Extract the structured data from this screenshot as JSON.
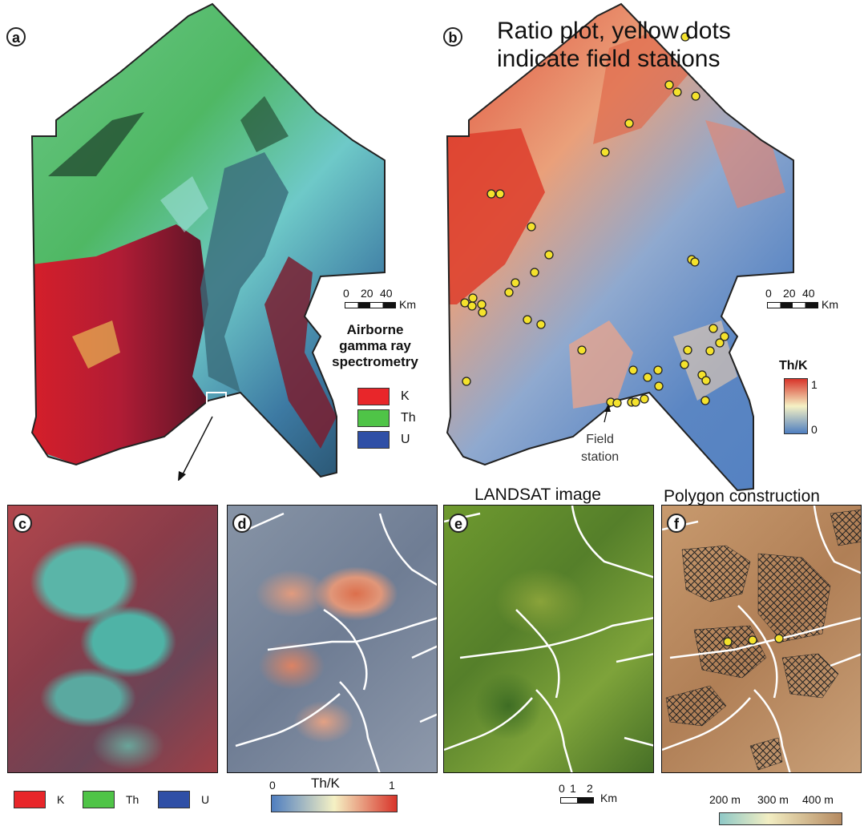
{
  "panels": {
    "a": {
      "letter": "a"
    },
    "b": {
      "letter": "b",
      "title_line1": "Ratio plot, yellow dots",
      "title_line2": "indicate field stations",
      "annotation_line1": "Field",
      "annotation_line2": "station"
    },
    "c": {
      "letter": "c"
    },
    "d": {
      "letter": "d"
    },
    "e": {
      "letter": "e",
      "title": "LANDSAT image"
    },
    "f": {
      "letter": "f",
      "title": "Polygon construction"
    }
  },
  "scalebar_ab": {
    "ticks": [
      "0",
      "20",
      "40"
    ],
    "unit": "Km"
  },
  "scalebar_b": {
    "ticks": [
      "0",
      "20",
      "40"
    ],
    "unit": "Km"
  },
  "scalebar_e": {
    "ticks": [
      "0",
      "1",
      "2"
    ],
    "unit": "Km"
  },
  "gamma_legend": {
    "title_line1": "Airborne",
    "title_line2": "gamma ray",
    "title_line3": "spectrometry",
    "items": [
      {
        "label": "K",
        "color": "#e8262a"
      },
      {
        "label": "Th",
        "color": "#4fc447"
      },
      {
        "label": "U",
        "color": "#2f4fa6"
      }
    ]
  },
  "thk_legend_b": {
    "title": "Th/K",
    "max": "1",
    "min": "0"
  },
  "bottom_legend_c": {
    "items": [
      {
        "label": "K",
        "color": "#e8262a"
      },
      {
        "label": "Th",
        "color": "#4fc447"
      },
      {
        "label": "U",
        "color": "#2f4fa6"
      }
    ]
  },
  "thk_legend_d": {
    "title": "Th/K",
    "min": "0",
    "max": "1"
  },
  "elev_legend_f": {
    "ticks": [
      "200 m",
      "300 m",
      "400 m"
    ]
  },
  "colors": {
    "ratio_low": "#4f7ec0",
    "ratio_mid": "#f5f1c4",
    "ratio_high": "#d8342a",
    "station": "#f4e22c",
    "elev_low": "#8fc9c7",
    "elev_mid": "#f2eec3",
    "elev_high": "#b58a61"
  }
}
